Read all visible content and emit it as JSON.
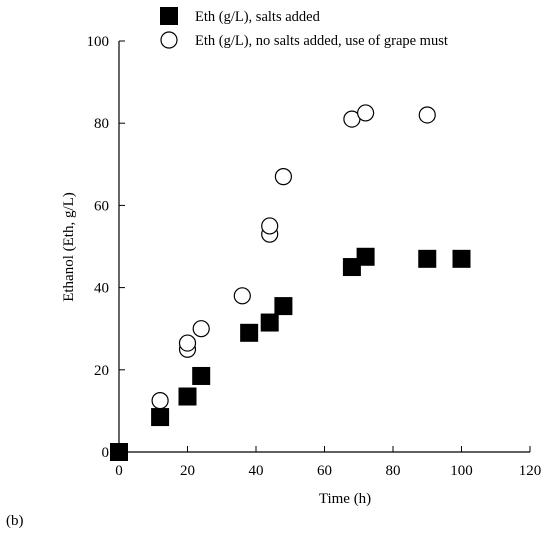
{
  "panel_label": "(b)",
  "chart_data": {
    "type": "scatter",
    "title": "",
    "xlabel": "Time (h)",
    "ylabel": "Ethanol (Eth, g/L)",
    "xlim": [
      0,
      120
    ],
    "ylim": [
      0,
      100
    ],
    "xticks": [
      0,
      20,
      40,
      60,
      80,
      100,
      120
    ],
    "yticks": [
      0,
      20,
      40,
      60,
      80,
      100
    ],
    "grid": false,
    "legend_position": "top",
    "series": [
      {
        "name": "Eth (g/L), salts added",
        "marker": "filled-square",
        "color": "#000000",
        "points": [
          {
            "x": 0,
            "y": 0
          },
          {
            "x": 12,
            "y": 8.5
          },
          {
            "x": 20,
            "y": 13.5
          },
          {
            "x": 24,
            "y": 18.5
          },
          {
            "x": 38,
            "y": 29
          },
          {
            "x": 44,
            "y": 31.5
          },
          {
            "x": 48,
            "y": 35.5
          },
          {
            "x": 68,
            "y": 45
          },
          {
            "x": 72,
            "y": 47.5
          },
          {
            "x": 90,
            "y": 47
          },
          {
            "x": 100,
            "y": 47
          }
        ]
      },
      {
        "name": "Eth (g/L), no salts added, use of grape must",
        "marker": "open-circle",
        "color": "#000000",
        "points": [
          {
            "x": 12,
            "y": 12.5
          },
          {
            "x": 20,
            "y": 25
          },
          {
            "x": 20,
            "y": 26.5
          },
          {
            "x": 24,
            "y": 30
          },
          {
            "x": 36,
            "y": 38
          },
          {
            "x": 44,
            "y": 53
          },
          {
            "x": 44,
            "y": 55
          },
          {
            "x": 48,
            "y": 67
          },
          {
            "x": 68,
            "y": 81
          },
          {
            "x": 72,
            "y": 82.5
          },
          {
            "x": 90,
            "y": 82
          }
        ]
      }
    ]
  }
}
